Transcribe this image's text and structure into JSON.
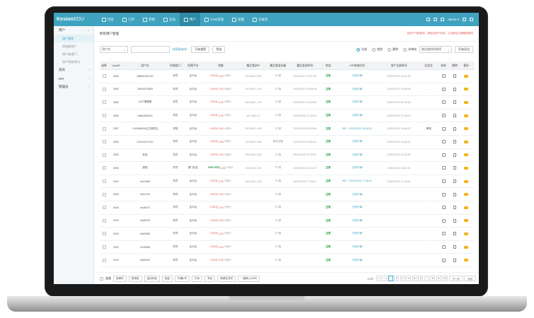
{
  "topbar": {
    "logo_main": "Kesion",
    "logo_edu": "EDU",
    "nav": [
      "内容",
      "订单",
      "营销",
      "互动",
      "用户",
      "CRM管理",
      "配置",
      "云服务"
    ],
    "active_nav": 4,
    "user": "admin ▾"
  },
  "sidebar": {
    "groups": [
      {
        "label": "用户",
        "chev": "⌄",
        "subs": [
          "用户管理",
          "添加新用户",
          "用户组/部门",
          "用户考核/积分"
        ]
      },
      {
        "label": "会员",
        "chev": "›",
        "subs": []
      },
      {
        "label": "KPI",
        "chev": "›",
        "subs": []
      },
      {
        "label": "管理员",
        "chev": "›",
        "subs": []
      }
    ]
  },
  "main": {
    "breadcrumb": "所有用户管理",
    "tips": "若用户不能登录，请检查用户状态，以及是否过期限制登录"
  },
  "filter": {
    "select": "用户名",
    "advanced_link": "按高级查询 ›",
    "search_btn": "开始搜索",
    "filter_btn": "筛选",
    "radios": [
      "全部",
      "锁定",
      "删除",
      "未审核"
    ],
    "radio_active": 0,
    "sort_select": "按注册时间排序",
    "export_btn": "开始导出"
  },
  "table": {
    "headers": [
      "选择",
      "UserID",
      "用户名",
      "所属部门",
      "所属平台",
      "余额",
      "最后登录IP",
      "最后登录设备",
      "最后登录时间",
      "状态",
      "VIP有效时间",
      "用户注册时间",
      "业务员",
      "修改",
      "删除",
      "更多"
    ],
    "rows": [
      {
        "id": "2962",
        "name": "18889136?101",
        "dept": "学员",
        "plat": "全平台",
        "m1": "0.00元",
        "m2": "0.00",
        "m3": "0 积分",
        "ip": "192.168.1.200",
        "dev": "PC端",
        "last": "2020/10/27 10:41:36",
        "status": "正常",
        "vip": "已到不满",
        "reg": "2020/10/27 10:41:36",
        "sales": "-"
      },
      {
        "id": "2961",
        "name": "18000078389",
        "dept": "学员",
        "plat": "全平台",
        "m1": "0.00元",
        "m2": "0.00",
        "m3": "0 积分",
        "ip": "192.168.1.149",
        "dev": "PC端",
        "last": "2020/10/27 09:58:08",
        "status": "正常",
        "vip": "已到不满",
        "reg": "2020/10/27 09:58:08",
        "sales": "-"
      },
      {
        "id": "2960",
        "name": "1027哪哪哪",
        "dept": "学员",
        "plat": "全平台",
        "m1": "0.00元",
        "m2": "0.00",
        "m3": "0 积分",
        "ip": "192.168.1.176",
        "dev": "PC端",
        "last": "2020/10/27 09:18:52",
        "status": "正常",
        "vip": "已到不满",
        "reg": "2020/10/27 09:18:52",
        "sales": "-"
      },
      {
        "id": "2959",
        "name": "19864825931",
        "dept": "学员",
        "plat": "全平台",
        "m1": "0.00元",
        "m2": "0.00",
        "m3": "0 积分",
        "ip": "192.168.1.5",
        "dev": "PC端",
        "last": "2020/10/24 17:35:03",
        "status": "正常",
        "vip": "已到不满",
        "reg": "2020/10/24 17:35:03",
        "sales": "-"
      },
      {
        "id": "2957",
        "name": "134385804E[江苏联达]",
        "dept": "学院",
        "plat": "全平台",
        "m1": "0.00元",
        "m2": "0.00",
        "m3": "0 积分",
        "ip": "192.168.1.189",
        "dev": "PC端",
        "last": "2020/10/24 11:25:08",
        "status": "正常",
        "vip": "WP：2020/10/30 15:46:23",
        "reg": "2020/10/24 15:46:23",
        "sales": "嘿嘿"
      },
      {
        "id": "2953",
        "name": "13101013?101",
        "dept": "学员",
        "plat": "全平台",
        "m1": "0.00元",
        "m2": "0.00",
        "m3": "0 积分",
        "ip": "192.168.1.189",
        "dev": "移动设备",
        "last": "2020/10/23 13:46:52",
        "status": "正常",
        "vip": "已到不满",
        "reg": "2020/10/23 13:46:52",
        "sales": "-"
      },
      {
        "id": "2952",
        "name": "老班",
        "dept": "学员",
        "plat": "全平台",
        "m1": "0.00元",
        "m2": "0.00",
        "m3": "0 积分",
        "ip": "192.168.1.189",
        "dev": "PC端",
        "last": "2020/10/22 10:26:32",
        "status": "正常",
        "vip": "已到不满",
        "reg": "2020/10/22 10:26:32",
        "sales": "-"
      },
      {
        "id": "2950",
        "name": "甜甜",
        "dept": "学员",
        "plat": "厦门校区",
        "m1": "9989.99元",
        "m2": "0.00",
        "m3": "0 积分",
        "ip": "192.168.1.119",
        "dev": "PC端",
        "last": "2020/10/21 16:02:23",
        "status": "正常",
        "vip": "已到不满",
        "reg": "2020/10/21 16:02:23",
        "sales": "-"
      },
      {
        "id": "2947",
        "name": "ek41089",
        "dept": "学员",
        "plat": "全平台",
        "m1": "0.00元",
        "m2": "0.00",
        "m3": "0 积分",
        "ip": "192.168.1.145",
        "dev": "PC端",
        "last": "2020/10/20 17:48:41",
        "status": "正常",
        "vip": "WP：2020/10/30 17:48:41",
        "reg": "2020/10/20 17:48:41",
        "sales": "-"
      },
      {
        "id": "2946",
        "name": "ek61135",
        "dept": "学员",
        "plat": "全平台",
        "m1": "0.00元",
        "m2": "0.00",
        "m3": "0 积分",
        "ip": "",
        "dev": "PC端",
        "last": "",
        "status": "正常",
        "vip": "已到不满",
        "reg": "",
        "sales": "-"
      },
      {
        "id": "2945",
        "name": "ek45070",
        "dept": "学员",
        "plat": "全平台",
        "m1": "0.00元",
        "m2": "0.00",
        "m3": "0 积分",
        "ip": "",
        "dev": "PC端",
        "last": "",
        "status": "正常",
        "vip": "已到不满",
        "reg": "",
        "sales": "-"
      },
      {
        "id": "2944",
        "name": "ek85739",
        "dept": "学员",
        "plat": "全平台",
        "m1": "0.00元",
        "m2": "0.00",
        "m3": "0 积分",
        "ip": "",
        "dev": "PC端",
        "last": "",
        "status": "正常",
        "vip": "已到不满",
        "reg": "",
        "sales": "-"
      },
      {
        "id": "2943",
        "name": "ek69658",
        "dept": "学员",
        "plat": "全平台",
        "m1": "0.00元",
        "m2": "0.00",
        "m3": "0 积分",
        "ip": "",
        "dev": "PC端",
        "last": "",
        "status": "正常",
        "vip": "已到不满",
        "reg": "",
        "sales": "-"
      },
      {
        "id": "2942",
        "name": "e130989",
        "dept": "学员",
        "plat": "全平台",
        "m1": "0.00元",
        "m2": "0.00",
        "m3": "0 积分",
        "ip": "",
        "dev": "PC端",
        "last": "",
        "status": "正常",
        "vip": "已到不满",
        "reg": "",
        "sales": "-"
      },
      {
        "id": "2941",
        "name": "ek88340",
        "dept": "学员",
        "plat": "全平台",
        "m1": "0.00元",
        "m2": "0.00",
        "m3": "0 积分",
        "ip": "",
        "dev": "PC端",
        "last": "",
        "status": "正常",
        "vip": "已到不满",
        "reg": "",
        "sales": "-"
      }
    ]
  },
  "bottombar": {
    "buttons": [
      "全选",
      "发邮件",
      "发短信",
      "加站内信",
      "锁定",
      "开通VIP",
      "打印",
      "导出",
      "转移业务员",
      "一键转入CRM"
    ],
    "pager_info": "458条",
    "pages": [
      "«",
      "‹",
      "1",
      "2",
      "3",
      "4",
      "5",
      "6",
      "7",
      "8",
      "9",
      "10",
      "下一页",
      "末页"
    ],
    "active_page": "1"
  },
  "colors": {
    "accent": "#3fa3bf",
    "ok": "#2aa44f",
    "warn": "#e24b4b",
    "more": "#f2b41c"
  }
}
